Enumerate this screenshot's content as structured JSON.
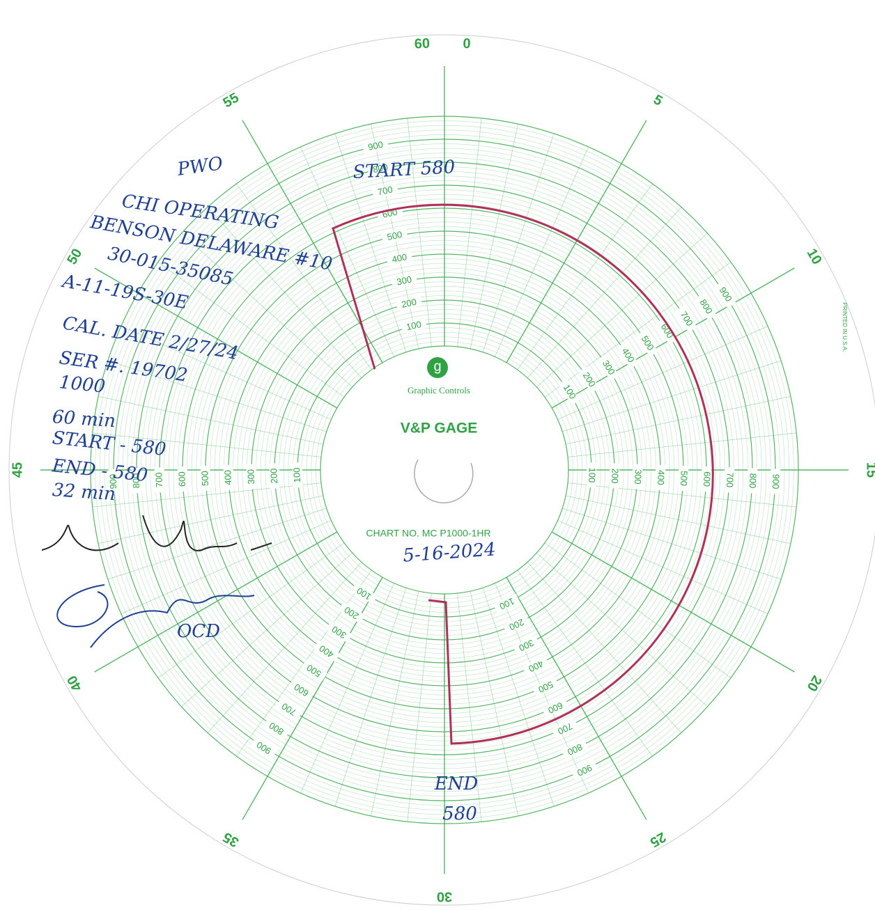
{
  "header": {
    "logo": "g",
    "brand": "Graphic Controls",
    "title": "V&P GAGE",
    "chart_no": "CHART NO. MC P1000-1HR",
    "printed": "PRINTED IN U.S.A."
  },
  "scale": {
    "minutes": [
      "0",
      "5",
      "10",
      "15",
      "20",
      "25",
      "30",
      "35",
      "40",
      "45",
      "50",
      "55",
      "60"
    ],
    "pressure": [
      "100",
      "200",
      "300",
      "400",
      "500",
      "600",
      "700",
      "800",
      "900"
    ]
  },
  "notes": {
    "left": [
      "PWO",
      "CHI OPERATING",
      "BENSON DELAWARE #10",
      "30-015-35085",
      "A-11-19S-30E",
      "CAL. DATE 2/27/24",
      "SER #. 19702",
      "1000",
      "60 min",
      "START - 580",
      "END - 580",
      "32 min"
    ],
    "start": "START 580",
    "end": "END",
    "end_value": "580",
    "date": "5-16-2024",
    "witness": "OCD"
  }
}
